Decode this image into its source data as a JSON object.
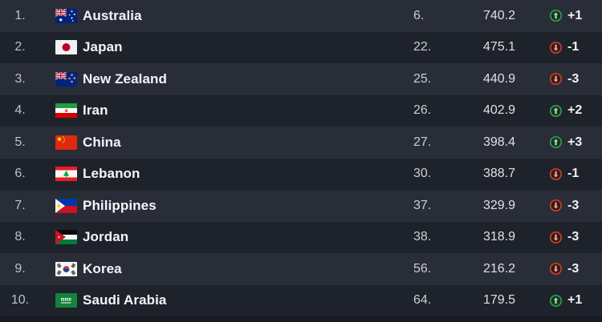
{
  "table": {
    "name": "fiba-asia-ranking-table",
    "rows": [
      {
        "rank": "1.",
        "country": "Australia",
        "flag": "au",
        "world_rank": "6.",
        "points": "740.2",
        "change": "+1",
        "direction": "up"
      },
      {
        "rank": "2.",
        "country": "Japan",
        "flag": "jp",
        "world_rank": "22.",
        "points": "475.1",
        "change": "-1",
        "direction": "down"
      },
      {
        "rank": "3.",
        "country": "New Zealand",
        "flag": "nz",
        "world_rank": "25.",
        "points": "440.9",
        "change": "-3",
        "direction": "down"
      },
      {
        "rank": "4.",
        "country": "Iran",
        "flag": "ir",
        "world_rank": "26.",
        "points": "402.9",
        "change": "+2",
        "direction": "up"
      },
      {
        "rank": "5.",
        "country": "China",
        "flag": "cn",
        "world_rank": "27.",
        "points": "398.4",
        "change": "+3",
        "direction": "up"
      },
      {
        "rank": "6.",
        "country": "Lebanon",
        "flag": "lb",
        "world_rank": "30.",
        "points": "388.7",
        "change": "-1",
        "direction": "down"
      },
      {
        "rank": "7.",
        "country": "Philippines",
        "flag": "ph",
        "world_rank": "37.",
        "points": "329.9",
        "change": "-3",
        "direction": "down"
      },
      {
        "rank": "8.",
        "country": "Jordan",
        "flag": "jo",
        "world_rank": "38.",
        "points": "318.9",
        "change": "-3",
        "direction": "down"
      },
      {
        "rank": "9.",
        "country": "Korea",
        "flag": "kr",
        "world_rank": "56.",
        "points": "216.2",
        "change": "-3",
        "direction": "down"
      },
      {
        "rank": "10.",
        "country": "Saudi Arabia",
        "flag": "sa",
        "world_rank": "64.",
        "points": "179.5",
        "change": "+1",
        "direction": "up"
      }
    ]
  },
  "colors": {
    "row_odd": "#292d37",
    "row_even": "#1e222b",
    "up_ring": "#2f9e48",
    "down_ring": "#c2402c"
  }
}
